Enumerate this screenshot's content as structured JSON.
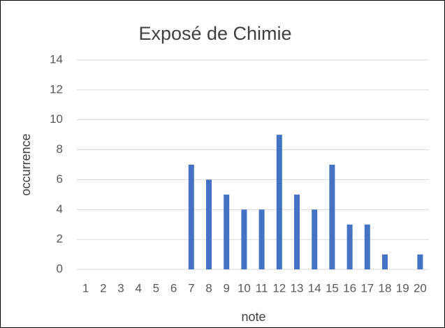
{
  "chart_data": {
    "type": "bar",
    "title": "Exposé de Chimie",
    "x_label": "note",
    "y_label": "occurrence",
    "categories": [
      "1",
      "2",
      "3",
      "4",
      "5",
      "6",
      "7",
      "8",
      "9",
      "10",
      "11",
      "12",
      "13",
      "14",
      "15",
      "16",
      "17",
      "18",
      "19",
      "20"
    ],
    "values": [
      0,
      0,
      0,
      0,
      0,
      0,
      7,
      6,
      5,
      4,
      4,
      9,
      5,
      4,
      7,
      3,
      3,
      1,
      0,
      1
    ],
    "color": "#4472c4",
    "ylim": [
      0,
      14
    ],
    "yticks": [
      0,
      2,
      4,
      6,
      8,
      10,
      12,
      14
    ],
    "grid": true
  }
}
